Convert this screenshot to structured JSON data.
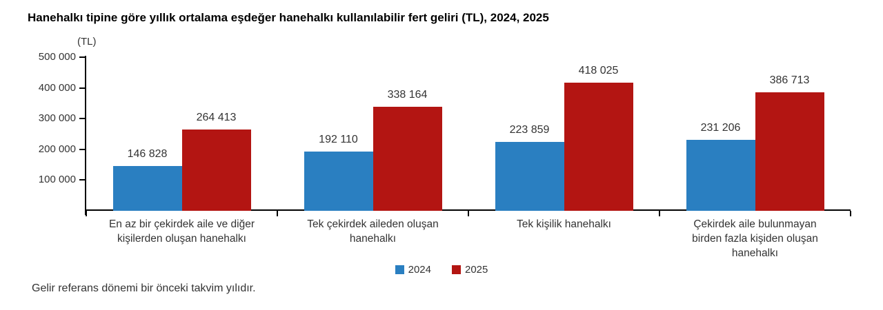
{
  "title": "Hanehalkı tipine göre yıllık ortalama eşdeğer hanehalkı kullanılabilir fert geliri (TL), 2024, 2025",
  "footnote": "Gelir referans dönemi bir önceki takvim yılıdır.",
  "chart_data": {
    "type": "bar",
    "title": "Hanehalkı tipine göre yıllık ortalama eşdeğer hanehalkı kullanılabilir fert geliri (TL), 2024, 2025",
    "unit_label": "(TL)",
    "categories": [
      "En az bir çekirdek aile ve diğer kişilerden oluşan hanehalkı",
      "Tek çekirdek aileden oluşan hanehalkı",
      "Tek kişilik hanehalkı",
      "Çekirdek aile bulunmayan birden fazla kişiden oluşan hanehalkı"
    ],
    "category_lines": [
      [
        "En az bir çekirdek aile ve diğer",
        "kişilerden oluşan hanehalkı"
      ],
      [
        "Tek çekirdek aileden oluşan",
        "hanehalkı"
      ],
      [
        "Tek kişilik hanehalkı"
      ],
      [
        "Çekirdek aile bulunmayan",
        "birden fazla kişiden oluşan",
        "hanehalkı"
      ]
    ],
    "series": [
      {
        "name": "2024",
        "color": "#2a7fc1",
        "values": [
          146828,
          192110,
          223859,
          231206
        ]
      },
      {
        "name": "2025",
        "color": "#b31512",
        "values": [
          264413,
          338164,
          418025,
          386713
        ]
      }
    ],
    "value_labels": [
      [
        "146 828",
        "192 110",
        "223 859",
        "231 206"
      ],
      [
        "264 413",
        "338 164",
        "418 025",
        "386 713"
      ]
    ],
    "ylim": [
      0,
      500000
    ],
    "yticks": [
      100000,
      200000,
      300000,
      400000,
      500000
    ],
    "grid": false,
    "legend_position": "bottom"
  }
}
